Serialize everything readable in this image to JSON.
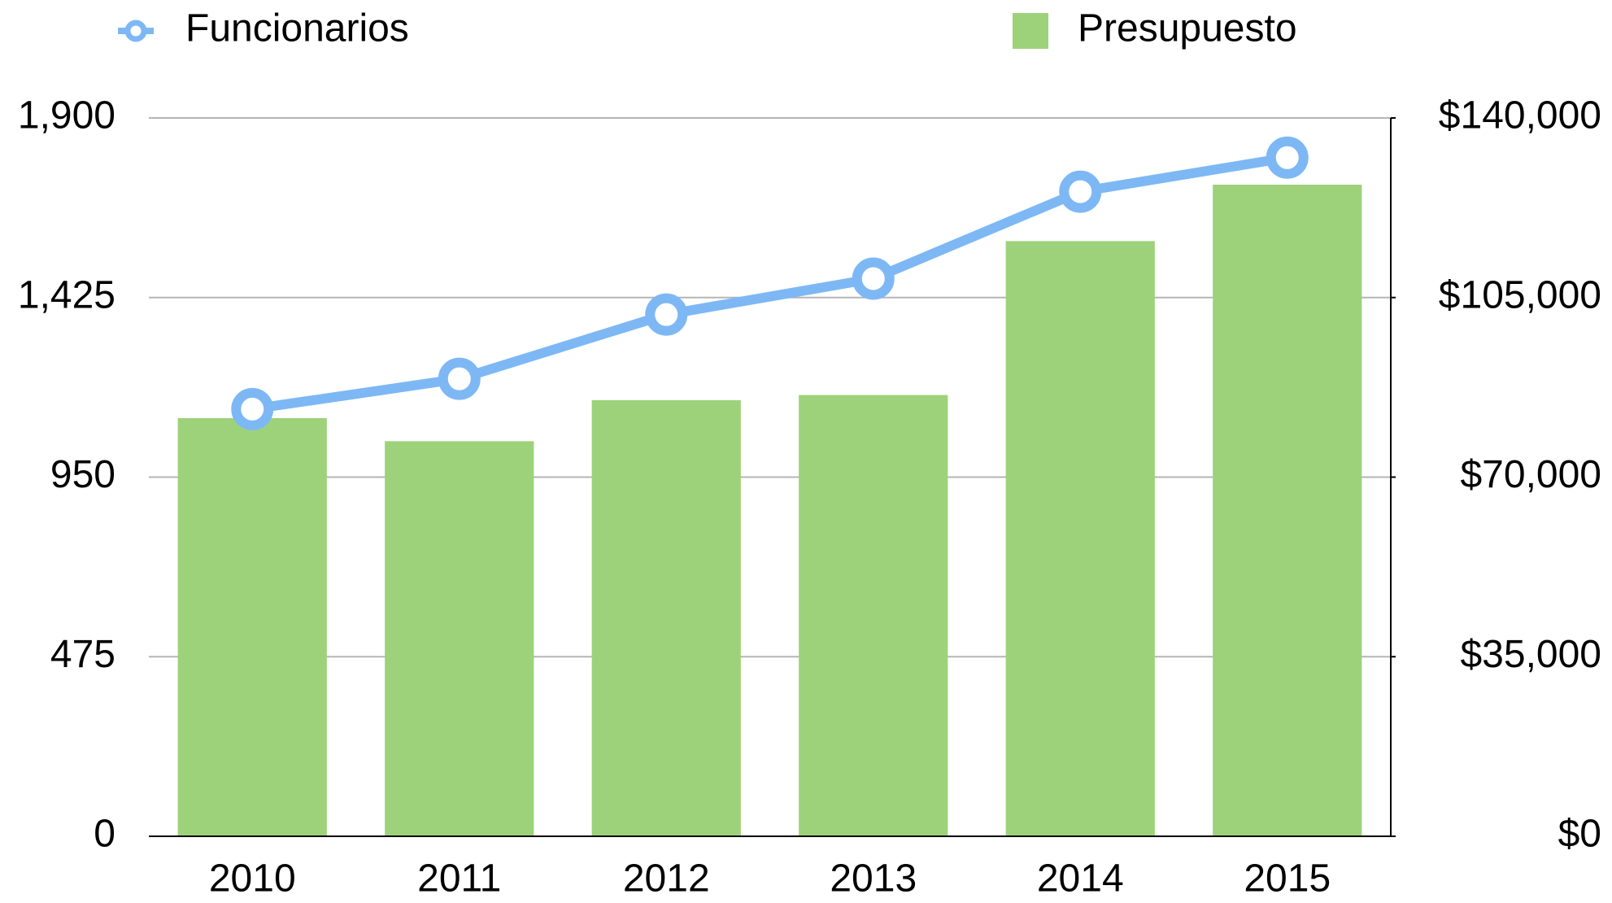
{
  "chart_data": {
    "type": "bar-line",
    "categories": [
      "2010",
      "2011",
      "2012",
      "2013",
      "2014",
      "2015"
    ],
    "series": [
      {
        "name": "Funcionarios",
        "type": "line",
        "color": "#7db8f5",
        "axis": "y",
        "values": [
          1130,
          1210,
          1380,
          1475,
          1705,
          1795
        ]
      },
      {
        "name": "Presupuesto",
        "type": "bar",
        "color": "#9dd27b",
        "axis": "y2",
        "values": [
          81500,
          77000,
          85000,
          86000,
          116000,
          127000
        ]
      }
    ],
    "ylim": [
      0,
      1900
    ],
    "yticks": [
      0,
      475,
      950,
      {
        "value": 1425,
        "label": "1,425"
      },
      {
        "value": 1900,
        "label": "1,900"
      }
    ],
    "y2lim": [
      0,
      140000
    ],
    "y2ticks": [
      {
        "value": 0,
        "label": "$0"
      },
      {
        "value": 35000,
        "label": "$35,000"
      },
      {
        "value": 70000,
        "label": "$70,000"
      },
      {
        "value": 105000,
        "label": "$105,000"
      },
      {
        "value": 140000,
        "label": "$140,000"
      }
    ],
    "grid": true
  }
}
